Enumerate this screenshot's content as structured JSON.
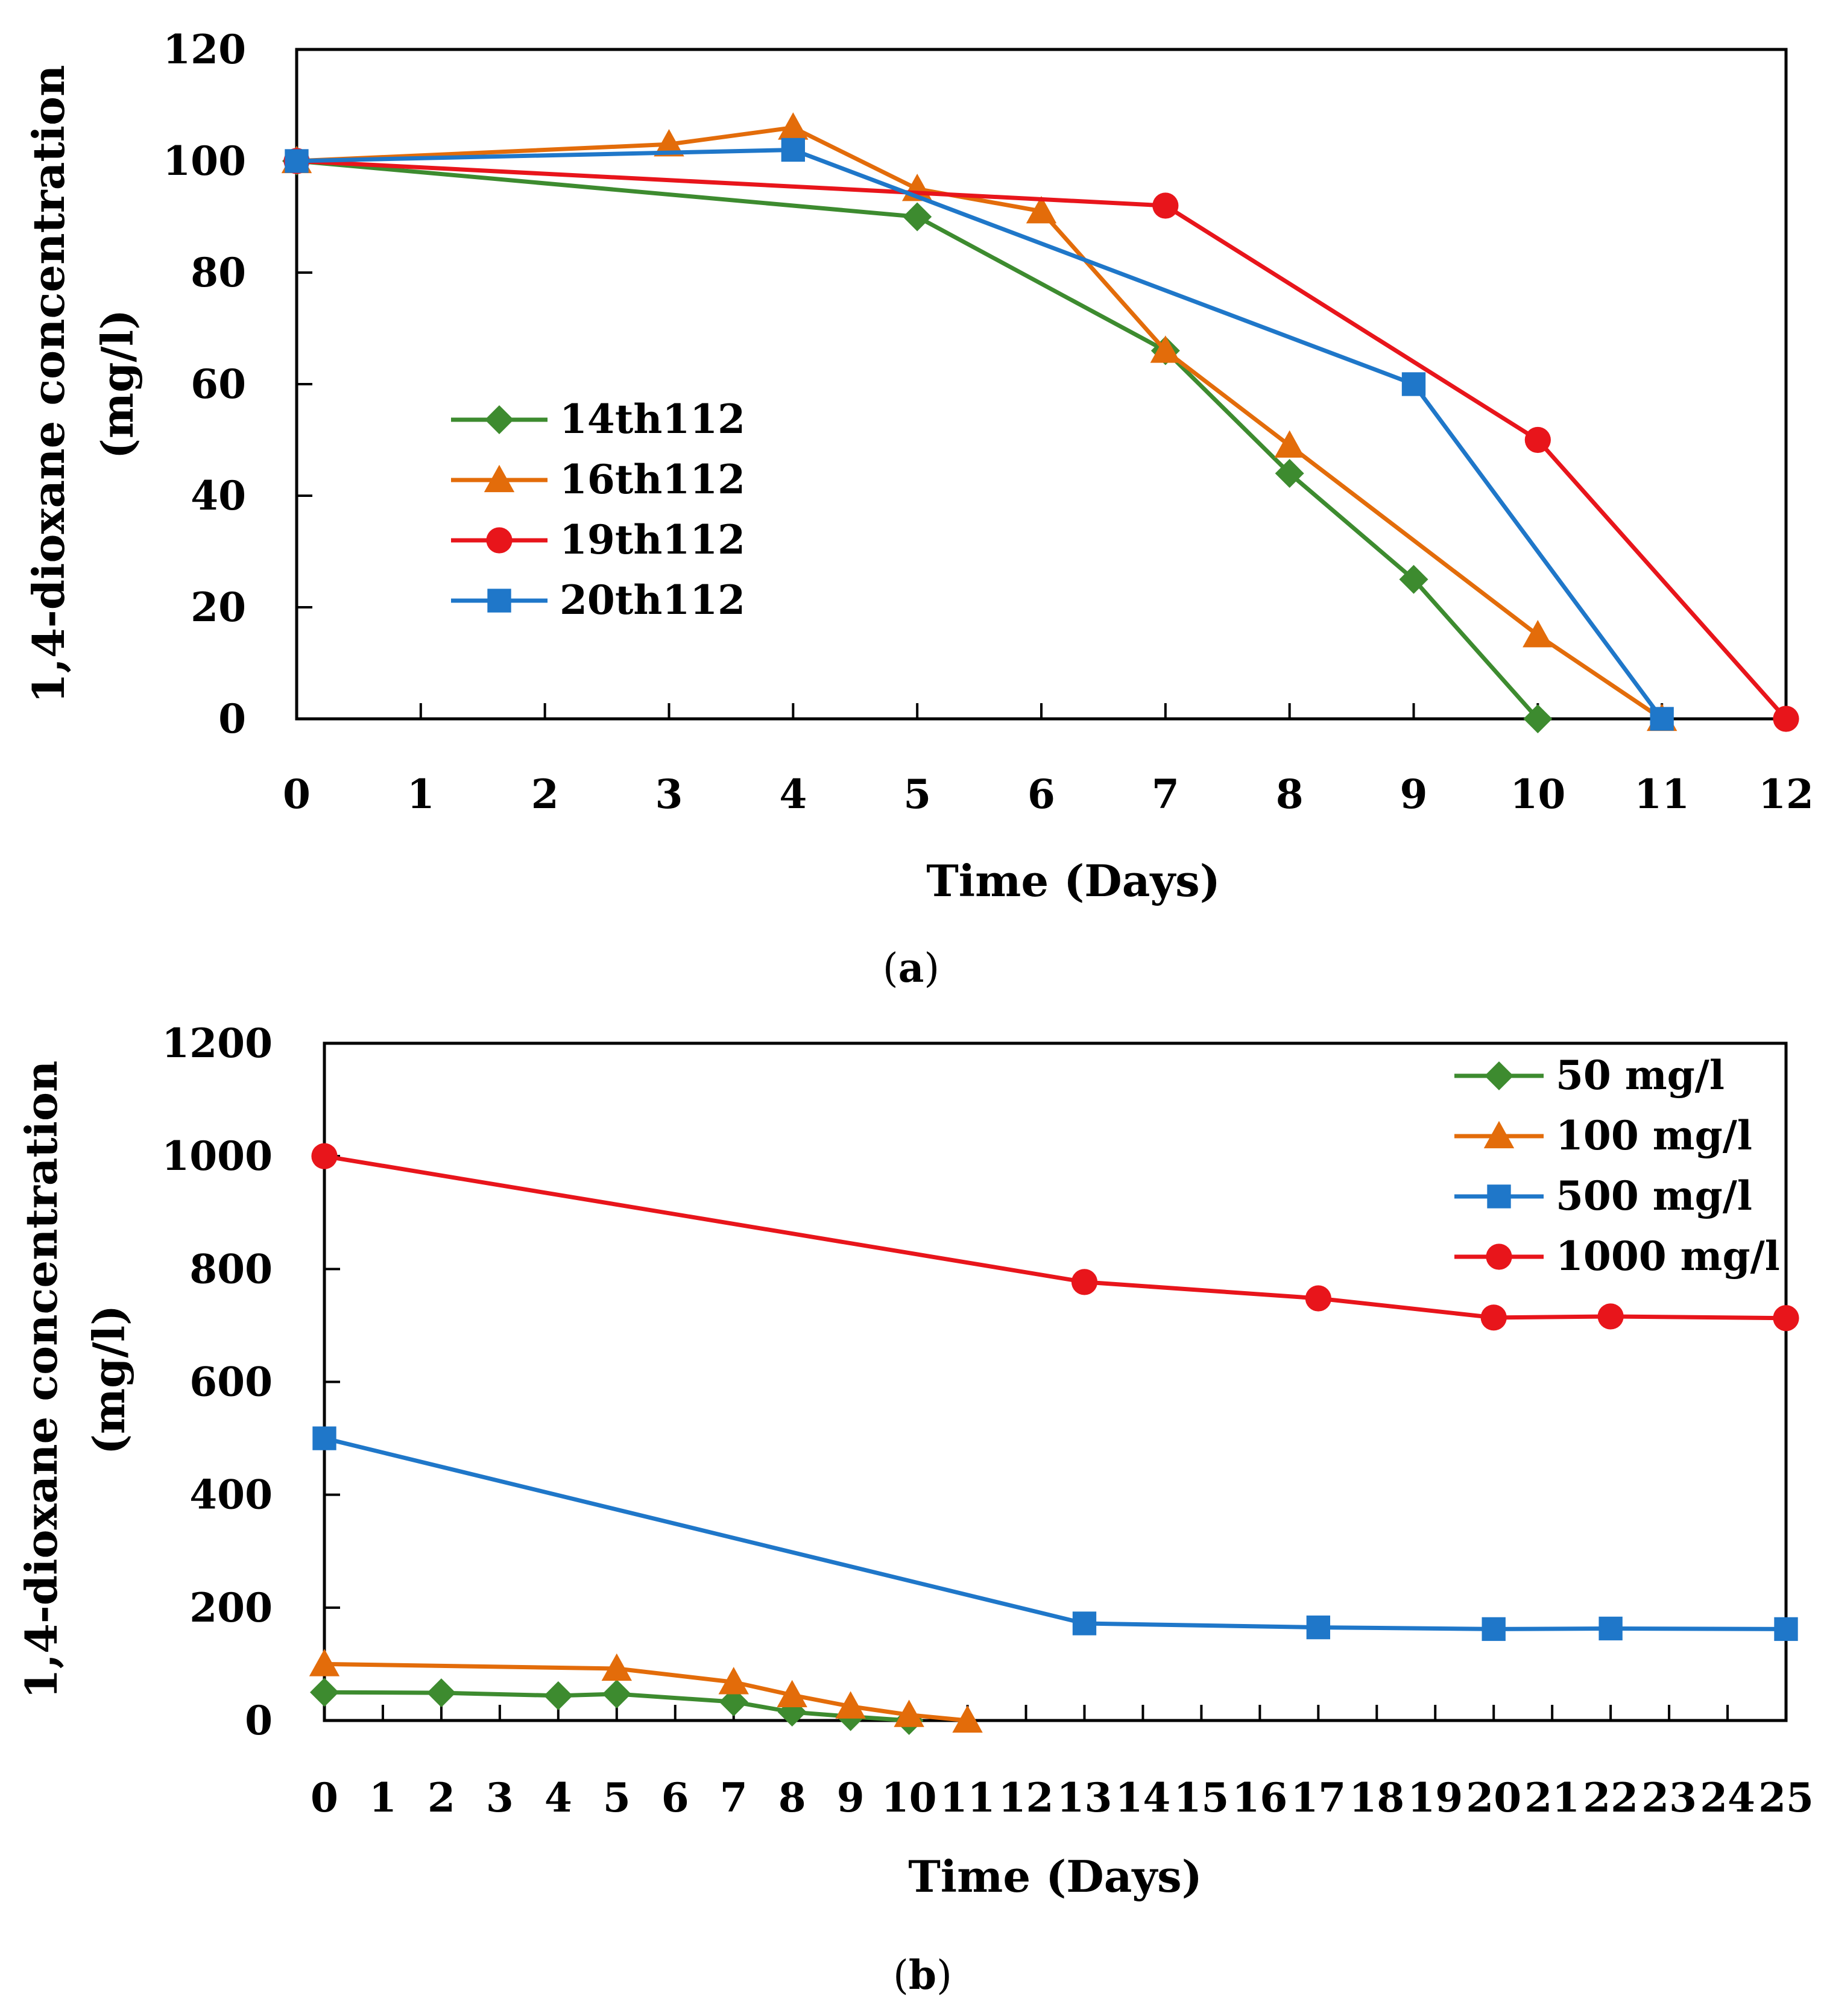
{
  "chart_data": [
    {
      "type": "line",
      "caption_letter": "a",
      "xlabel": "Time (Days)",
      "ylabel_line1": "1,4-dioxane concentration",
      "ylabel_line2": "(mg/l)",
      "xlim": [
        0,
        12
      ],
      "ylim": [
        0,
        120
      ],
      "x_ticks": [
        0,
        1,
        2,
        3,
        4,
        5,
        6,
        7,
        8,
        9,
        10,
        11,
        12
      ],
      "y_ticks": [
        0,
        20,
        40,
        60,
        80,
        100,
        120
      ],
      "grid": false,
      "legend_position": "left-middle",
      "series": [
        {
          "name": "14th112",
          "color": "#3d8b2f",
          "marker": "diamond",
          "x": [
            0,
            5,
            7,
            8,
            9,
            10
          ],
          "y": [
            100,
            90,
            66,
            44,
            25,
            0
          ]
        },
        {
          "name": "16th112",
          "color": "#e36c0a",
          "marker": "triangle",
          "x": [
            0,
            3,
            4,
            5,
            6,
            7,
            8,
            10,
            11
          ],
          "y": [
            100,
            103,
            106,
            95,
            91,
            66,
            49,
            15,
            0
          ]
        },
        {
          "name": "19th112",
          "color": "#e8151b",
          "marker": "circle",
          "x": [
            0,
            7,
            10,
            12
          ],
          "y": [
            100,
            92,
            50,
            0
          ]
        },
        {
          "name": "20th112",
          "color": "#1f77c9",
          "marker": "square",
          "x": [
            0,
            4,
            9,
            11
          ],
          "y": [
            100,
            102,
            60,
            0
          ]
        }
      ]
    },
    {
      "type": "line",
      "caption_letter": "b",
      "xlabel": "Time (Days)",
      "ylabel_line1": "1,4-dioxane concentration",
      "ylabel_line2": "(mg/l)",
      "xlim": [
        0,
        25
      ],
      "ylim": [
        0,
        1200
      ],
      "x_ticks": [
        0,
        1,
        2,
        3,
        4,
        5,
        6,
        7,
        8,
        9,
        10,
        11,
        12,
        13,
        14,
        15,
        16,
        17,
        18,
        19,
        20,
        21,
        22,
        23,
        24,
        25
      ],
      "y_ticks": [
        0,
        200,
        400,
        600,
        800,
        1000,
        1200
      ],
      "grid": false,
      "legend_position": "top-right",
      "series": [
        {
          "name": "50 mg/l",
          "color": "#3d8b2f",
          "marker": "diamond",
          "x": [
            0,
            2,
            4,
            5,
            7,
            8,
            9,
            10
          ],
          "y": [
            50,
            49,
            44,
            47,
            33,
            15,
            7,
            0
          ]
        },
        {
          "name": "100 mg/l",
          "color": "#e36c0a",
          "marker": "triangle",
          "x": [
            0,
            5,
            7,
            8,
            9,
            10,
            11
          ],
          "y": [
            100,
            92,
            68,
            45,
            25,
            10,
            0
          ]
        },
        {
          "name": "500 mg/l",
          "color": "#1f77c9",
          "marker": "square",
          "x": [
            0,
            13,
            17,
            20,
            22,
            25
          ],
          "y": [
            500,
            172,
            165,
            162,
            163,
            162
          ]
        },
        {
          "name": "1000 mg/l",
          "color": "#e8151b",
          "marker": "circle",
          "x": [
            0,
            13,
            17,
            20,
            22,
            25
          ],
          "y": [
            1000,
            777,
            748,
            714,
            716,
            713
          ]
        }
      ]
    }
  ]
}
